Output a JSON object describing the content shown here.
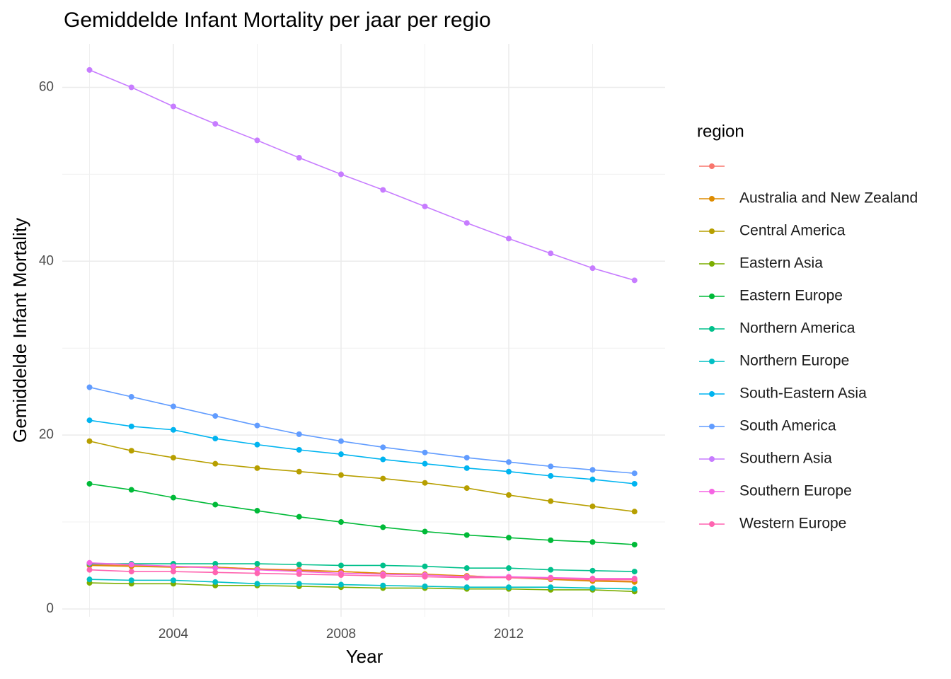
{
  "chart_data": {
    "type": "line",
    "title": "Gemiddelde Infant Mortality per jaar per regio",
    "x_label": "Year",
    "y_label": "Gemiddelde Infant Mortality",
    "legend_title": "region",
    "legend_position": "right",
    "grid": true,
    "x": [
      2002,
      2003,
      2004,
      2005,
      2006,
      2007,
      2008,
      2009,
      2010,
      2011,
      2012,
      2013,
      2014,
      2015
    ],
    "xlim": [
      2001.35,
      2015.73
    ],
    "xticks": [
      2004,
      2008,
      2012
    ],
    "x_minor_ticks": [
      2002,
      2006,
      2010,
      2014
    ],
    "ylim": [
      -0.9,
      65
    ],
    "yticks": [
      0,
      20,
      40,
      60
    ],
    "y_minor_ticks": [
      10,
      30,
      50
    ],
    "series": [
      {
        "name": null,
        "color": "#F8766D",
        "values": [
          5.1,
          5.0,
          4.9,
          4.8,
          4.6,
          4.5,
          4.3,
          4.1,
          3.9,
          3.8,
          3.6,
          3.5,
          3.3,
          3.2
        ]
      },
      {
        "name": "Australia and New Zealand",
        "color": "#DE8C00",
        "values": [
          5.0,
          4.9,
          4.8,
          4.8,
          4.6,
          4.4,
          4.3,
          4.1,
          4.0,
          3.8,
          3.6,
          3.4,
          3.2,
          3.1
        ]
      },
      {
        "name": "Central America",
        "color": "#B79F00",
        "values": [
          19.3,
          18.2,
          17.4,
          16.7,
          16.2,
          15.8,
          15.4,
          15.0,
          14.5,
          13.9,
          13.1,
          12.4,
          11.8,
          11.2
        ]
      },
      {
        "name": "Eastern Asia",
        "color": "#7CAE00",
        "values": [
          3.0,
          2.9,
          2.9,
          2.7,
          2.7,
          2.6,
          2.5,
          2.4,
          2.4,
          2.3,
          2.3,
          2.2,
          2.2,
          2.0
        ]
      },
      {
        "name": "Eastern Europe",
        "color": "#00BA38",
        "values": [
          14.4,
          13.7,
          12.8,
          12.0,
          11.3,
          10.6,
          10.0,
          9.4,
          8.9,
          8.5,
          8.2,
          7.9,
          7.7,
          7.4
        ]
      },
      {
        "name": "Northern America",
        "color": "#00C08B",
        "values": [
          5.2,
          5.2,
          5.2,
          5.2,
          5.2,
          5.1,
          5.0,
          5.0,
          4.9,
          4.7,
          4.7,
          4.5,
          4.4,
          4.3
        ]
      },
      {
        "name": "Northern Europe",
        "color": "#00BFC4",
        "values": [
          3.4,
          3.3,
          3.3,
          3.1,
          2.9,
          2.9,
          2.8,
          2.7,
          2.6,
          2.5,
          2.5,
          2.5,
          2.4,
          2.3
        ]
      },
      {
        "name": "South-Eastern Asia",
        "color": "#00B4F0",
        "values": [
          21.7,
          21.0,
          20.6,
          19.6,
          18.9,
          18.3,
          17.8,
          17.2,
          16.7,
          16.2,
          15.8,
          15.3,
          14.9,
          14.4
        ]
      },
      {
        "name": "South America",
        "color": "#619CFF",
        "values": [
          25.5,
          24.4,
          23.3,
          22.2,
          21.1,
          20.1,
          19.3,
          18.6,
          18.0,
          17.4,
          16.9,
          16.4,
          16.0,
          15.6
        ]
      },
      {
        "name": "Southern Asia",
        "color": "#C77CFF",
        "values": [
          62.0,
          60.0,
          57.8,
          55.8,
          53.9,
          51.9,
          50.0,
          48.2,
          46.3,
          44.4,
          42.6,
          40.9,
          39.2,
          37.8
        ]
      },
      {
        "name": "Southern Europe",
        "color": "#F564E3",
        "values": [
          5.3,
          5.1,
          4.9,
          4.7,
          4.5,
          4.3,
          4.1,
          4.0,
          3.9,
          3.7,
          3.7,
          3.6,
          3.5,
          3.5
        ]
      },
      {
        "name": "Western Europe",
        "color": "#FF64B0",
        "values": [
          4.5,
          4.3,
          4.3,
          4.2,
          4.1,
          4.0,
          3.9,
          3.8,
          3.7,
          3.6,
          3.6,
          3.5,
          3.4,
          3.4
        ]
      }
    ]
  }
}
